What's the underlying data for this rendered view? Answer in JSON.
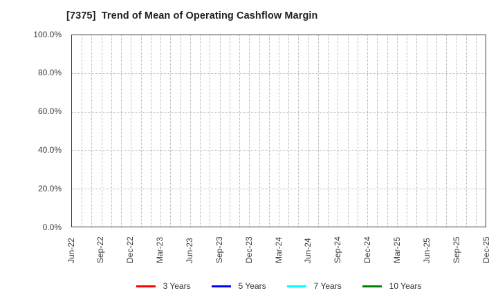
{
  "chart_data": {
    "type": "line",
    "title": "[7375]  Trend of Mean of Operating Cashflow Margin",
    "x_tick_labels": [
      "Jun-22",
      "Sep-22",
      "Dec-22",
      "Mar-23",
      "Jun-23",
      "Sep-23",
      "Dec-23",
      "Mar-24",
      "Jun-24",
      "Sep-24",
      "Dec-24",
      "Mar-25",
      "Jun-25",
      "Sep-25",
      "Dec-25"
    ],
    "x_minor_intervals_per_quarter": 3,
    "y_tick_labels": [
      "100.0%",
      "80.0%",
      "60.0%",
      "40.0%",
      "20.0%",
      "0.0%"
    ],
    "y_gridline_values": [
      20,
      40,
      60,
      80
    ],
    "ylim": [
      0,
      100
    ],
    "y_unit": "%",
    "grid": {
      "visible": true,
      "style": "dotted",
      "color": "#b3b3b3"
    },
    "legend_position": "bottom",
    "series": [
      {
        "name": "3 Years",
        "color": "#ff0000",
        "values": []
      },
      {
        "name": "5 Years",
        "color": "#0000ff",
        "values": []
      },
      {
        "name": "7 Years",
        "color": "#00ffff",
        "values": []
      },
      {
        "name": "10 Years",
        "color": "#008000",
        "values": []
      }
    ],
    "plot_area_empty": true
  }
}
